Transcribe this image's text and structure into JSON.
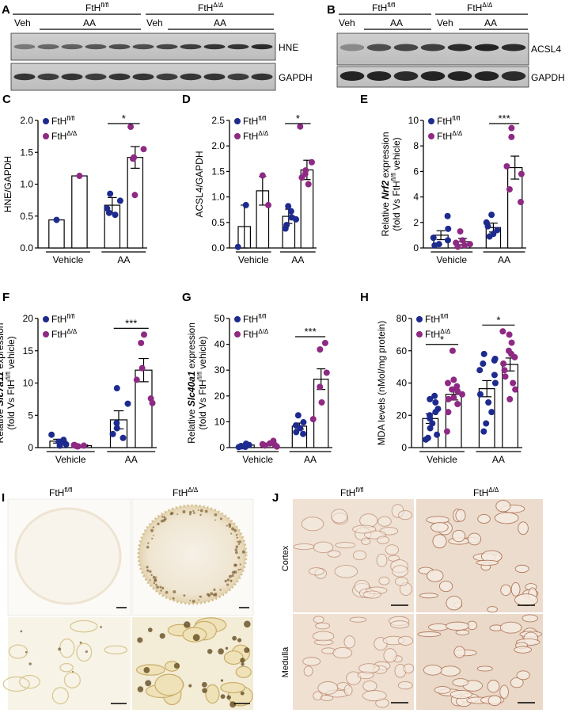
{
  "colors": {
    "flfl": "#1d2b8f",
    "dd": "#8e2a83",
    "bar_edge": "#000000",
    "blot_bg": "#c8c8c8",
    "band": "#1a1a1a"
  },
  "blots": {
    "A": {
      "letter": "A",
      "groups": [
        {
          "label": "FtH",
          "sup": "fl/fl"
        },
        {
          "label": "FtH",
          "sup": "Δ/Δ"
        }
      ],
      "treat": [
        "Veh",
        "AA",
        "Veh",
        "AA"
      ],
      "strips": [
        "HNE",
        "GAPDH"
      ]
    },
    "B": {
      "letter": "B",
      "groups": [
        {
          "label": "FtH",
          "sup": "fl/fl"
        },
        {
          "label": "FtH",
          "sup": "Δ/Δ"
        }
      ],
      "treat": [
        "Veh",
        "AA",
        "Veh",
        "AA"
      ],
      "strips": [
        "ACSL4",
        "GAPDH"
      ]
    }
  },
  "micro": {
    "I": {
      "letter": "I",
      "cols": [
        {
          "label": "FtH",
          "sup": "fl/fl"
        },
        {
          "label": "FtH",
          "sup": "Δ/Δ"
        }
      ]
    },
    "J": {
      "letter": "J",
      "cols": [
        {
          "label": "FtH",
          "sup": "fl/fl"
        },
        {
          "label": "FtH",
          "sup": "Δ/Δ"
        }
      ],
      "rows": [
        "Cortex",
        "Medulla"
      ]
    }
  },
  "chart_data": [
    {
      "letter": "C",
      "type": "bar",
      "ylabel": "HNE/GAPDH",
      "ylim": [
        0,
        2.0
      ],
      "yticks": [
        "0.0",
        "0.5",
        "1.0",
        "1.5",
        "2.0"
      ],
      "ytick_values": [
        0,
        0.5,
        1.0,
        1.5,
        2.0
      ],
      "categories": [
        "Vehicle",
        "AA"
      ],
      "legend": [
        {
          "label": "FtH",
          "sup": "fl/fl"
        },
        {
          "label": "FtH",
          "sup": "Δ/Δ"
        }
      ],
      "series": [
        {
          "values": [
            0.44,
            0.67
          ],
          "err": [
            0,
            0.12
          ],
          "points": [
            [
              0.44
            ],
            [
              0.55,
              0.62,
              0.74,
              0.85,
              0.52
            ]
          ]
        },
        {
          "values": [
            1.13,
            1.42
          ],
          "err": [
            0,
            0.17
          ],
          "points": [
            [
              1.13
            ],
            [
              1.9,
              1.55,
              1.42,
              1.4,
              0.83
            ]
          ]
        }
      ],
      "sig": [
        "*"
      ]
    },
    {
      "letter": "D",
      "type": "bar",
      "ylabel": "ACSL4/GAPDH",
      "ylim": [
        0,
        2.5
      ],
      "yticks": [
        "0.0",
        "0.5",
        "1.0",
        "1.5",
        "2.0",
        "2.5"
      ],
      "ytick_values": [
        0,
        0.5,
        1.0,
        1.5,
        2.0,
        2.5
      ],
      "categories": [
        "Vehicle",
        "AA"
      ],
      "legend": [
        {
          "label": "FtH",
          "sup": "fl/fl"
        },
        {
          "label": "FtH",
          "sup": "Δ/Δ"
        }
      ],
      "series": [
        {
          "values": [
            0.42,
            0.62
          ],
          "err": [
            0.42,
            0.14
          ],
          "points": [
            [
              0.84,
              0.02
            ],
            [
              0.38,
              0.6,
              0.72,
              0.82,
              0.56,
              0.45
            ]
          ]
        },
        {
          "values": [
            1.12,
            1.53
          ],
          "err": [
            0.28,
            0.19
          ],
          "points": [
            [
              1.42,
              0.84
            ],
            [
              2.38,
              1.68,
              1.45,
              1.52,
              1.25,
              1.38
            ]
          ]
        }
      ],
      "sig": [
        "*"
      ]
    },
    {
      "letter": "E",
      "type": "bar",
      "ylabel_parts": [
        "Relative ",
        "Nrf2",
        " expression"
      ],
      "ylabel2": "(fold Vs FtH",
      "ylabel2_sup": "fl/fl",
      "ylabel2_end": " vehicle)",
      "ylim": [
        0,
        10
      ],
      "yticks": [
        "0",
        "2",
        "4",
        "6",
        "8",
        "10"
      ],
      "ytick_values": [
        0,
        2,
        4,
        6,
        8,
        10
      ],
      "categories": [
        "Vehicle",
        "AA"
      ],
      "legend": [
        {
          "label": "FtH",
          "sup": "fl/fl"
        },
        {
          "label": "FtH",
          "sup": "Δ/Δ"
        }
      ],
      "series": [
        {
          "values": [
            1.0,
            1.6
          ],
          "err": [
            0.35,
            0.35
          ],
          "points": [
            [
              2.5,
              1.5,
              0.8,
              0.3,
              0.6,
              0.2
            ],
            [
              2.6,
              1.7,
              1.1,
              0.9,
              2.0,
              1.4
            ]
          ]
        },
        {
          "values": [
            0.5,
            6.3
          ],
          "err": [
            0.25,
            0.9
          ],
          "points": [
            [
              1.3,
              0.6,
              0.2,
              0.1,
              0.4,
              0.3
            ],
            [
              9.4,
              8.7,
              6.4,
              5.8,
              4.6,
              3.6
            ]
          ]
        }
      ],
      "sig": [
        "***"
      ]
    },
    {
      "letter": "F",
      "type": "bar",
      "ylabel_parts": [
        "Relative ",
        "Slc7a11",
        " expression"
      ],
      "ylabel2": "(fold Vs FtH",
      "ylabel2_sup": "fl/fl",
      "ylabel2_end": " vehicle)",
      "ylim": [
        0,
        20
      ],
      "yticks": [
        "0",
        "5",
        "10",
        "15",
        "20"
      ],
      "ytick_values": [
        0,
        5,
        10,
        15,
        20
      ],
      "categories": [
        "Vehicle",
        "AA"
      ],
      "legend": [
        {
          "label": "FtH",
          "sup": "fl/fl"
        },
        {
          "label": "FtH",
          "sup": "Δ/Δ"
        }
      ],
      "series": [
        {
          "values": [
            1.0,
            4.3
          ],
          "err": [
            0.3,
            1.4
          ],
          "points": [
            [
              2.0,
              1.2,
              0.8,
              0.5,
              0.9,
              0.3
            ],
            [
              9.2,
              6.8,
              3.8,
              3.0,
              2.1,
              1.5
            ]
          ]
        },
        {
          "values": [
            0.3,
            12.0
          ],
          "err": [
            0.1,
            1.8
          ],
          "points": [
            [
              0.4,
              0.3,
              0.2,
              0.3,
              0.2,
              0.4
            ],
            [
              17.5,
              16.2,
              12.3,
              10.5,
              7.6,
              6.9
            ]
          ]
        }
      ],
      "sig": [
        "***"
      ]
    },
    {
      "letter": "G",
      "type": "bar",
      "ylabel_parts": [
        "Relative ",
        "Slc40a1",
        " expression"
      ],
      "ylabel2": "(fold Vs FtH",
      "ylabel2_sup": "fl/fl",
      "ylabel2_end": " vehicle)",
      "ylim": [
        0,
        50
      ],
      "yticks": [
        "0",
        "10",
        "20",
        "30",
        "40",
        "50"
      ],
      "ytick_values": [
        0,
        10,
        20,
        30,
        40,
        50
      ],
      "categories": [
        "Vehicle",
        "AA"
      ],
      "legend": [
        {
          "label": "FtH",
          "sup": "fl/fl"
        },
        {
          "label": "FtH",
          "sup": "Δ/Δ"
        }
      ],
      "series": [
        {
          "values": [
            1.0,
            8.3
          ],
          "err": [
            0.3,
            1.2
          ],
          "points": [
            [
              1.5,
              1.0,
              0.5,
              0.3,
              0.6,
              0.2
            ],
            [
              12.5,
              9.8,
              8.6,
              7.5,
              6.0,
              5.3
            ]
          ]
        },
        {
          "values": [
            1.3,
            26.5
          ],
          "err": [
            0.4,
            4.0
          ],
          "points": [
            [
              2.6,
              1.6,
              1.0,
              0.4,
              0.8,
              1.3
            ],
            [
              40.5,
              38.0,
              29.0,
              23.5,
              17.5,
              11.0
            ]
          ]
        }
      ],
      "sig": [
        "***"
      ]
    },
    {
      "letter": "H",
      "type": "bar",
      "ylabel": "MDA levels (nMol/mg protein)",
      "ylim": [
        0,
        80
      ],
      "yticks": [
        "0",
        "20",
        "40",
        "60",
        "80"
      ],
      "ytick_values": [
        0,
        20,
        40,
        60,
        80
      ],
      "categories": [
        "Vehicle",
        "AA"
      ],
      "legend": [
        {
          "label": "FtH",
          "sup": "fl/fl"
        },
        {
          "label": "FtH",
          "sup": "Δ/Δ"
        }
      ],
      "series": [
        {
          "values": [
            18.0,
            36.5
          ],
          "err": [
            3.0,
            5.0
          ],
          "points": [
            [
              32,
              30,
              28,
              24,
              22,
              20,
              18,
              15,
              12,
              8,
              6,
              5
            ],
            [
              58,
              55,
              54,
              52,
              48,
              45,
              40,
              33,
              28,
              22,
              15,
              10
            ]
          ]
        },
        {
          "values": [
            33.0,
            51.5
          ],
          "err": [
            3.5,
            4.0
          ],
          "points": [
            [
              60,
              42,
              40,
              38,
              36,
              35,
              33,
              31,
              30,
              27,
              22,
              10
            ],
            [
              72,
              70,
              65,
              60,
              58,
              56,
              52,
              48,
              44,
              40,
              36,
              30
            ]
          ]
        }
      ],
      "sig": [
        "*",
        "*"
      ]
    }
  ]
}
